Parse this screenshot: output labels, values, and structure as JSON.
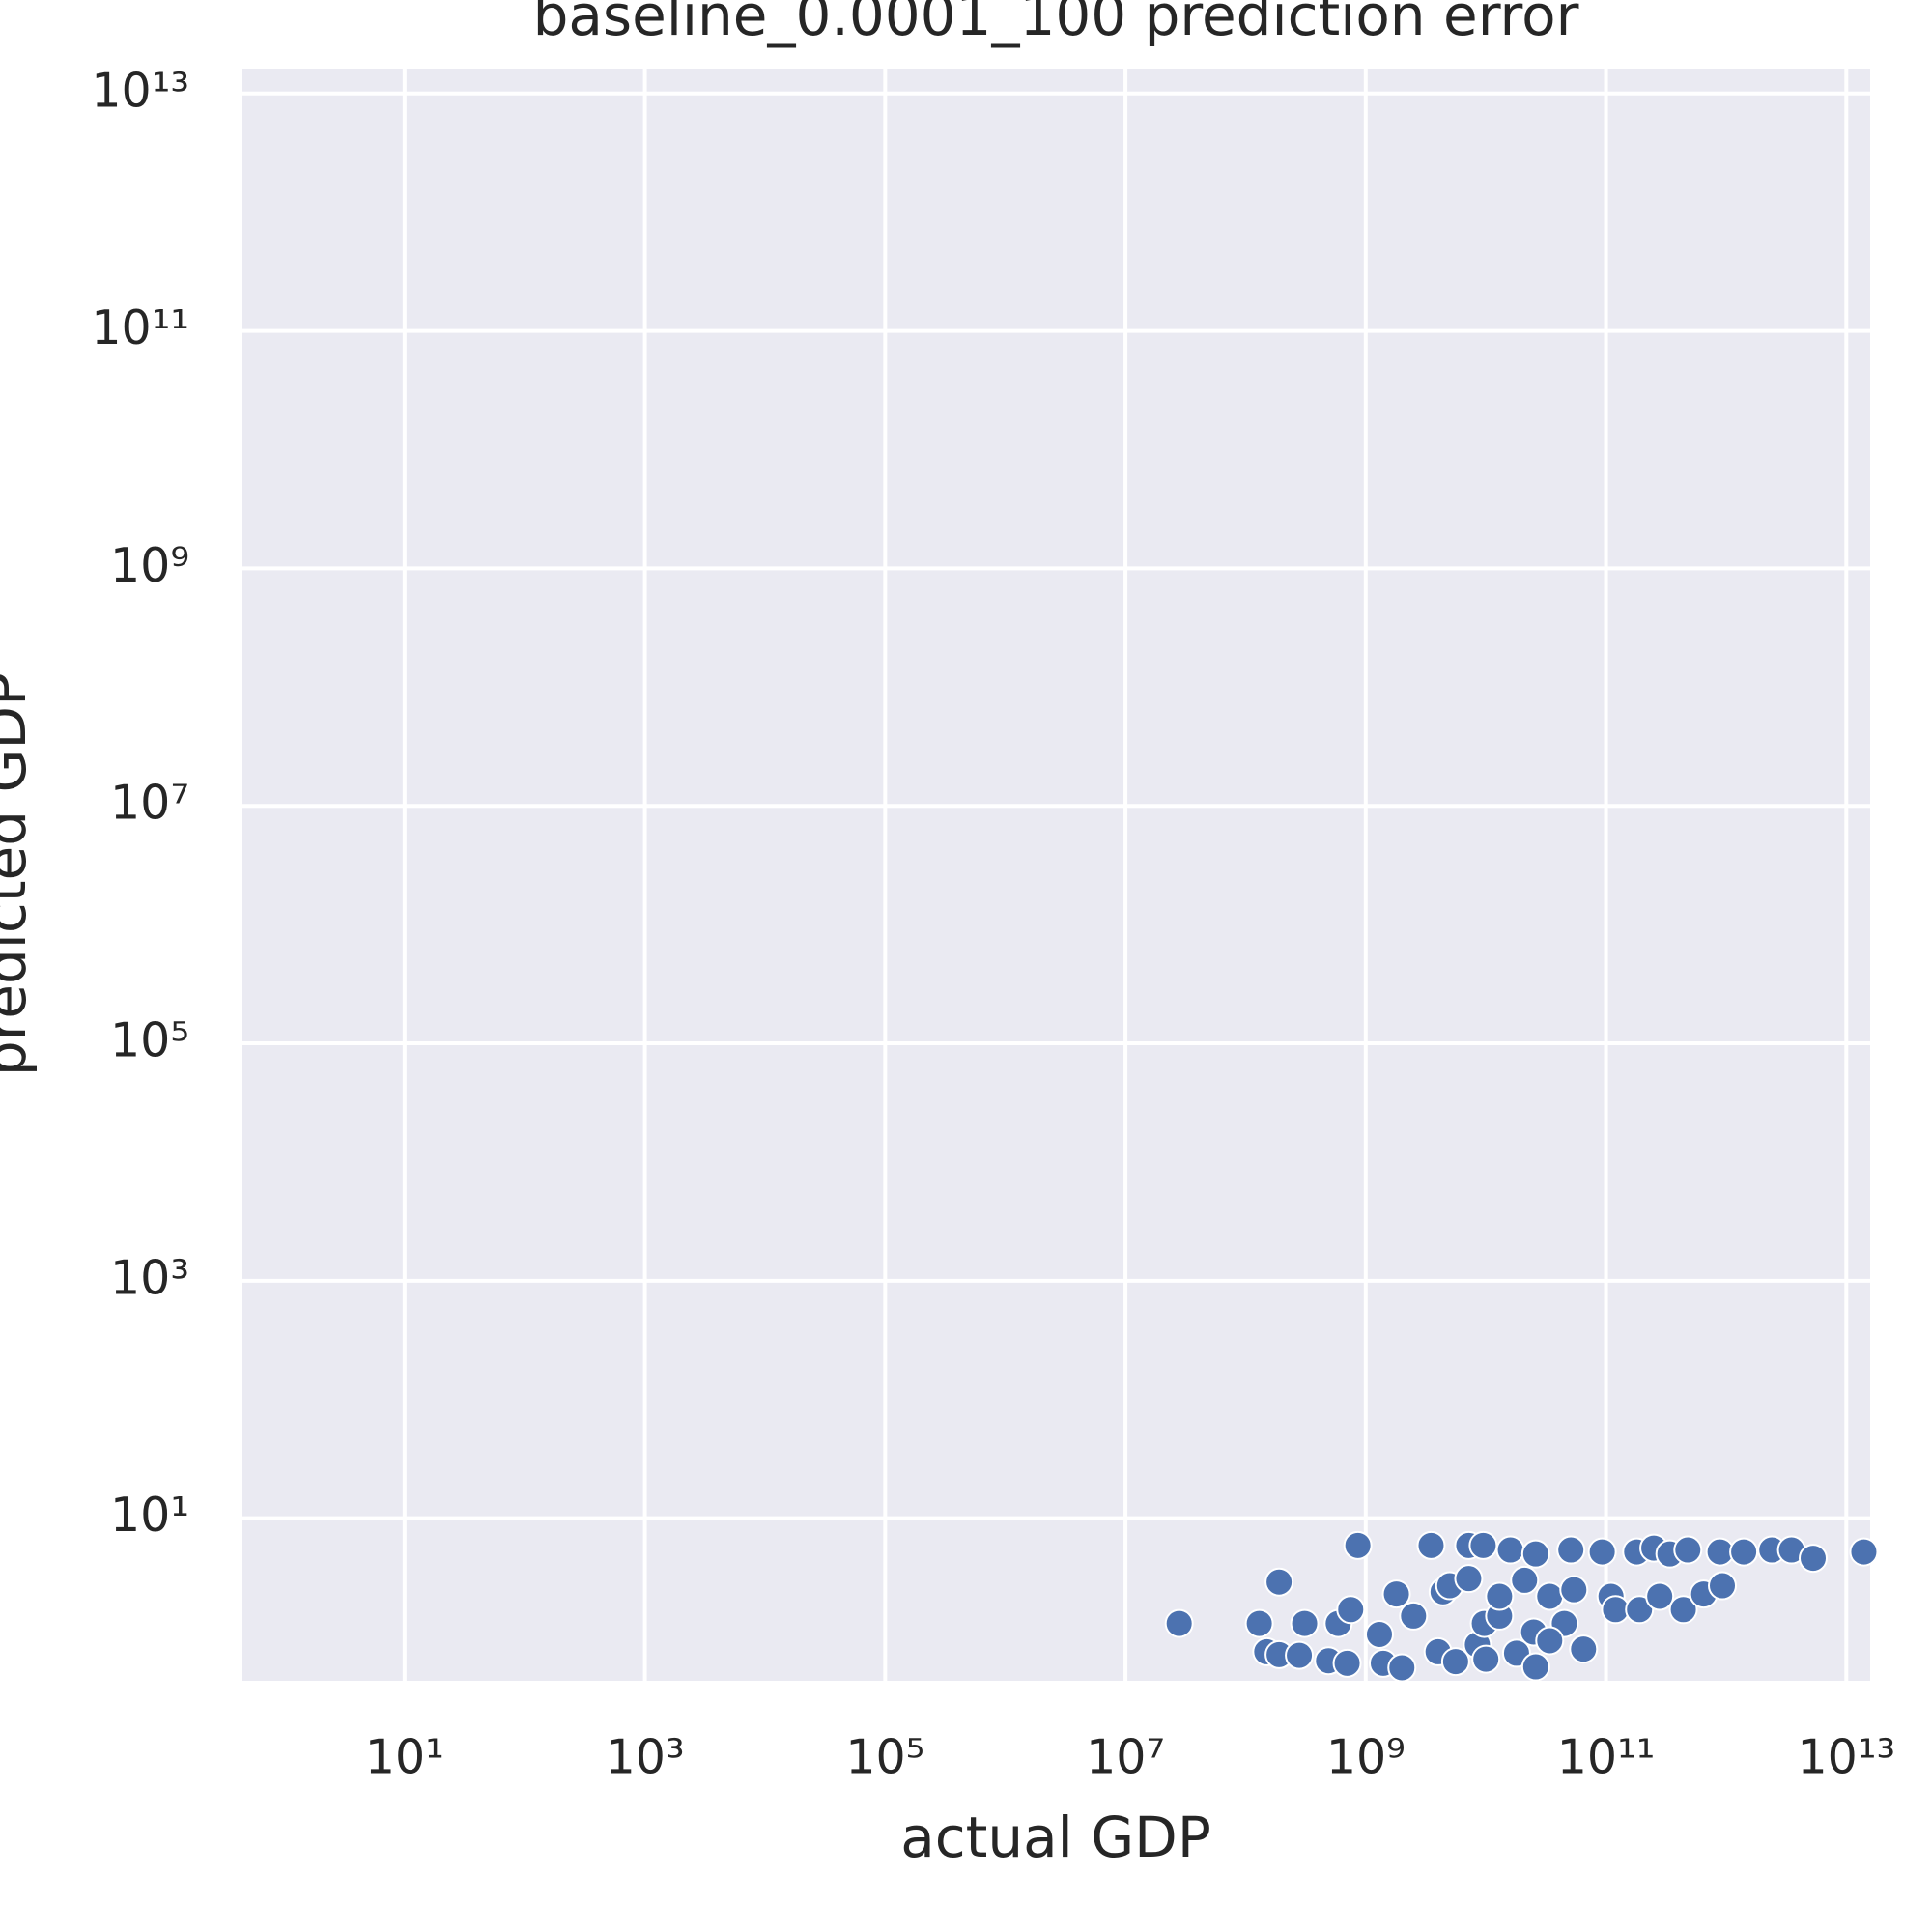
{
  "chart_data": {
    "type": "scatter",
    "title": "baseline_0.0001_100 prediction error",
    "x_label": "actual GDP",
    "y_label": "predicted GDP",
    "xscale": "log",
    "yscale": "log",
    "grid": true,
    "color": "#4c72b0",
    "xlim": [
      0.447,
      15800000000000.0
    ],
    "ylim": [
      0.427,
      16200000000000.0
    ],
    "xticks": [
      {
        "value": 10,
        "label": "10¹"
      },
      {
        "value": 1000,
        "label": "10³"
      },
      {
        "value": 100000,
        "label": "10⁵"
      },
      {
        "value": 10000000,
        "label": "10⁷"
      },
      {
        "value": 1000000000,
        "label": "10⁹"
      },
      {
        "value": 100000000000,
        "label": "10¹¹"
      },
      {
        "value": 10000000000000,
        "label": "10¹³"
      }
    ],
    "yticks": [
      {
        "value": 10,
        "label": "10¹"
      },
      {
        "value": 1000,
        "label": "10³"
      },
      {
        "value": 100000,
        "label": "10⁵"
      },
      {
        "value": 10000000,
        "label": "10⁷"
      },
      {
        "value": 1000000000,
        "label": "10⁹"
      },
      {
        "value": 100000000000,
        "label": "10¹¹"
      },
      {
        "value": 10000000000000,
        "label": "10¹³"
      }
    ],
    "x": [
      28000000.0,
      130000000.0,
      190000000.0,
      310000000.0,
      590000000.0,
      750000000.0,
      860000000.0,
      150000000.0,
      190000000.0,
      280000000.0,
      490000000.0,
      700000000.0,
      1300000000.0,
      1400000000.0,
      1800000000.0,
      2000000000.0,
      2500000000.0,
      3500000000.0,
      4000000000.0,
      4400000000.0,
      5000000000.0,
      7200000000.0,
      9500000000.0,
      8500000000.0,
      9700000000.0,
      13000000000.0,
      16000000000.0,
      18000000000.0,
      21000000000.0,
      25000000000.0,
      26000000000.0,
      34000000000.0,
      45000000000.0,
      51000000000.0,
      54000000000.0,
      65000000000.0,
      93000000000.0,
      110000000000.0,
      120000000000.0,
      180000000000.0,
      190000000000.0,
      250000000000.0,
      280000000000.0,
      340000000000.0,
      440000000000.0,
      480000000000.0,
      650000000000.0,
      890000000000.0,
      930000000000.0,
      1400000000000.0,
      2400000000000.0,
      3500000000000.0,
      5300000000000.0,
      14000000000000.0,
      26000000000.0,
      10000000000.0,
      5600000000.0,
      7200000000.0,
      34000000000.0,
      13000000000.0
    ],
    "values": [
      1.3,
      1.3,
      2.9,
      1.3,
      1.3,
      1.7,
      5.9,
      0.75,
      0.71,
      0.7,
      0.63,
      0.6,
      1.05,
      0.6,
      2.3,
      0.55,
      1.5,
      5.9,
      0.75,
      2.4,
      2.7,
      5.9,
      5.9,
      0.86,
      1.3,
      1.5,
      5.4,
      0.73,
      3.0,
      1.1,
      5.0,
      2.2,
      1.3,
      5.4,
      2.5,
      0.79,
      5.2,
      2.2,
      1.7,
      5.2,
      1.7,
      5.6,
      2.2,
      5.0,
      1.7,
      5.4,
      2.3,
      5.2,
      2.7,
      5.2,
      5.4,
      5.4,
      4.6,
      5.2,
      0.56,
      0.65,
      0.62,
      3.1,
      0.93,
      2.2
    ]
  }
}
